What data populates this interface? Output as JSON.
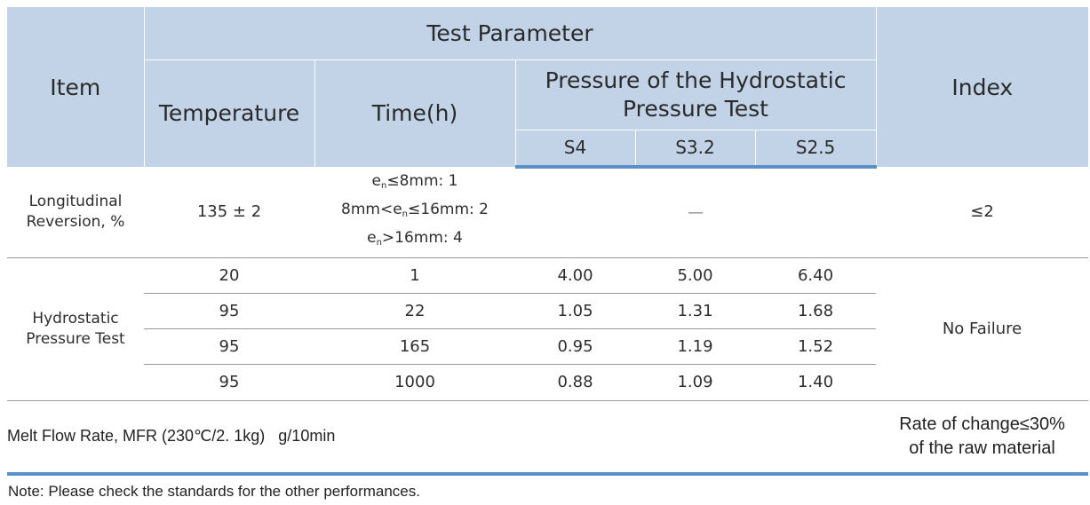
{
  "header": {
    "item": "Item",
    "test_parameter": "Test Parameter",
    "index": "Index",
    "temperature": "Temperature",
    "time": "Time(h)",
    "pressure_line1": "Pressure of the Hydrostatic",
    "pressure_line2": "Pressure Test",
    "s4": "S4",
    "s32": "S3.2",
    "s25": "S2.5"
  },
  "longitudinal": {
    "item_line1": "Longitudinal",
    "item_line2": "Reversion, %",
    "temperature": "135 ± 2",
    "time_line1_pre": "e",
    "time_line1_sub": "n",
    "time_line1_post": "≤8mm: 1",
    "time_line2_pre": "8mm<e",
    "time_line2_sub": "n",
    "time_line2_post": "≤16mm: 2",
    "time_line3_pre": "e",
    "time_line3_sub": "n",
    "time_line3_post": ">16mm: 4",
    "pressure": "—",
    "index": "≤2"
  },
  "hydrostatic": {
    "item_line1": "Hydrostatic",
    "item_line2": "Pressure Test",
    "index": "No Failure",
    "rows": [
      {
        "temperature": "20",
        "time": "1",
        "s4": "4.00",
        "s32": "5.00",
        "s25": "6.40"
      },
      {
        "temperature": "95",
        "time": "22",
        "s4": "1.05",
        "s32": "1.31",
        "s25": "1.68"
      },
      {
        "temperature": "95",
        "time": "165",
        "s4": "0.95",
        "s32": "1.19",
        "s25": "1.52"
      },
      {
        "temperature": "95",
        "time": "1000",
        "s4": "0.88",
        "s32": "1.09",
        "s25": "1.40"
      }
    ]
  },
  "mfr": {
    "label": "Melt Flow Rate, MFR (230℃/2. 1kg)   g/10min",
    "index_line1": "Rate of change≤30%",
    "index_line2": "of the raw material"
  },
  "note": "Note: Please check the standards for the other performances."
}
